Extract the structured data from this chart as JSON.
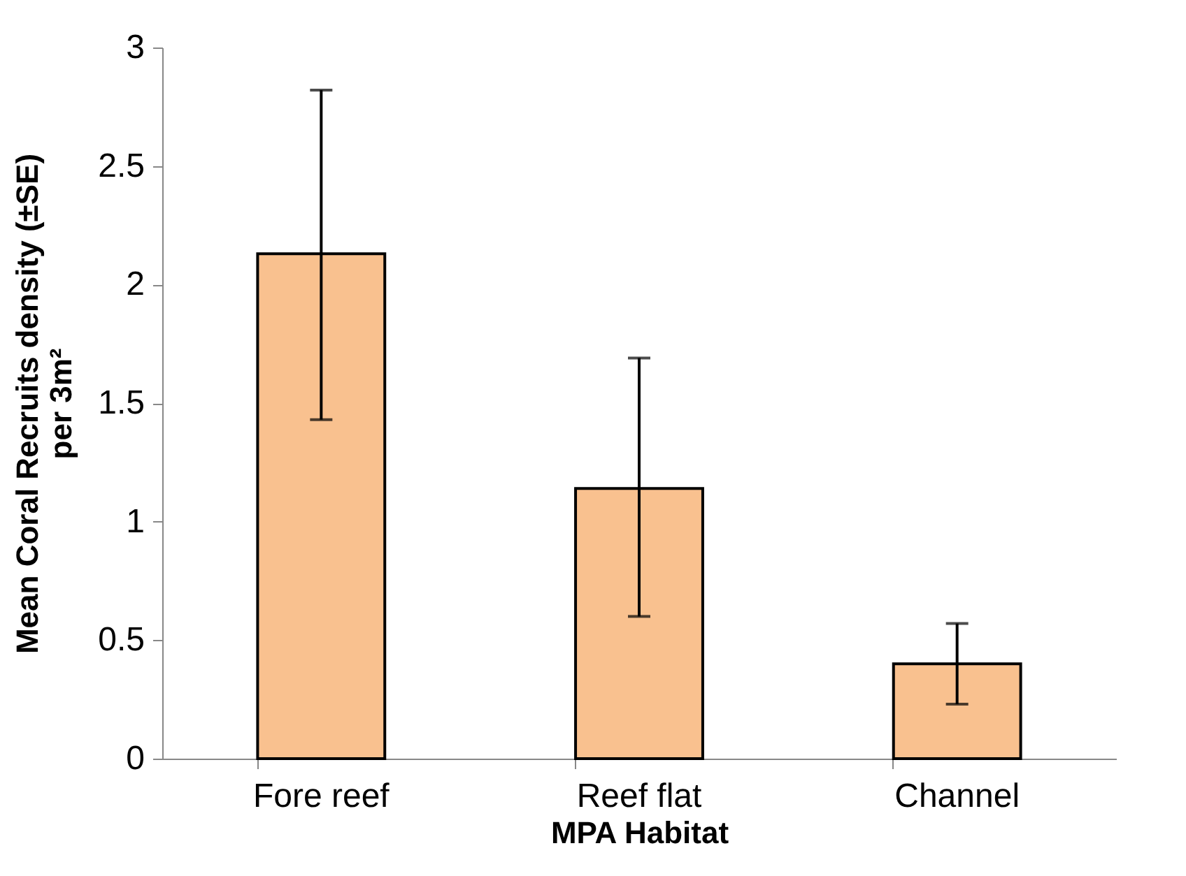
{
  "chart_data": {
    "type": "bar",
    "xlabel": "MPA Habitat",
    "ylabel": "Mean Coral Recruits density (±SE)\nper 3m²",
    "categories": [
      "Fore reef",
      "Reef flat",
      "Channel"
    ],
    "values": [
      2.13,
      1.14,
      0.4
    ],
    "errors": [
      [
        1.43,
        2.82
      ],
      [
        0.6,
        1.69
      ],
      [
        0.23,
        0.57
      ]
    ],
    "color": "#f9c18f",
    "ylim": [
      0,
      3
    ],
    "yticks": [
      0,
      0.5,
      1,
      1.5,
      2,
      2.5,
      3
    ],
    "grid": false
  }
}
